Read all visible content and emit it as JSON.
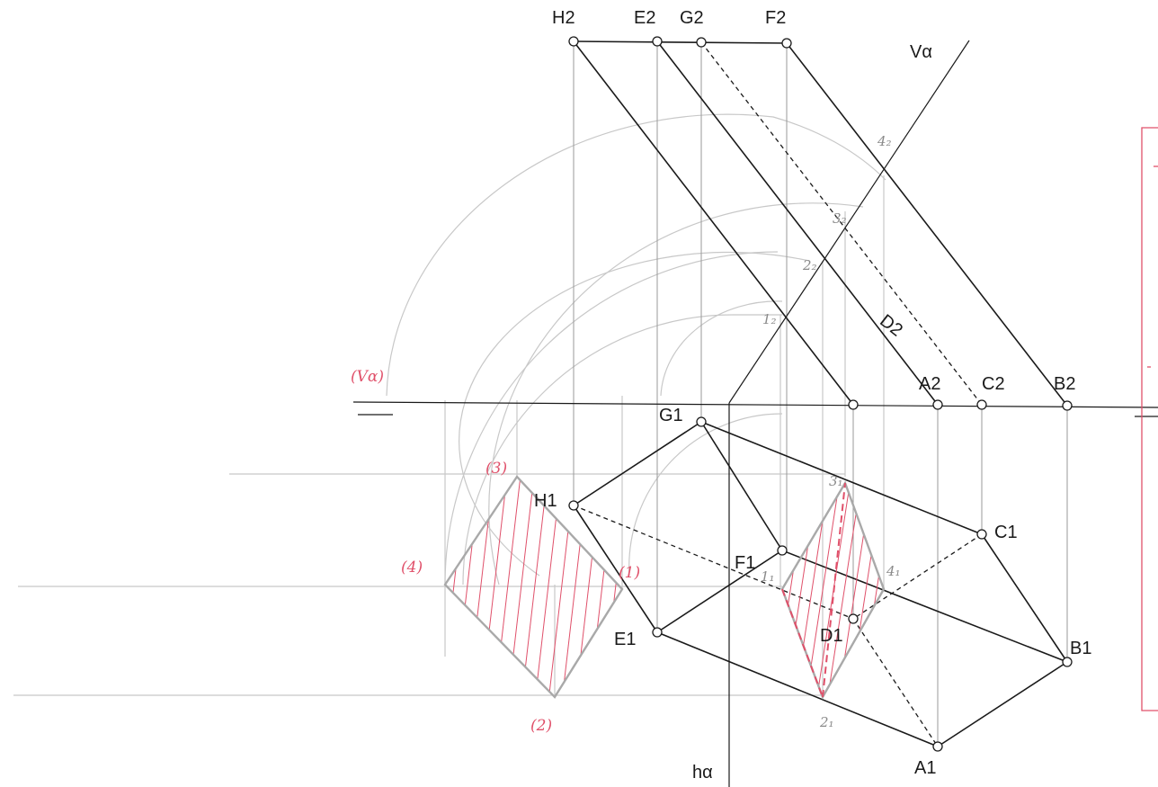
{
  "labels": {
    "H2": "H2",
    "E2": "E2",
    "G2": "G2",
    "F2": "F2",
    "V_alpha": "Vα",
    "h_alpha": "hα",
    "D2": "D2",
    "A2": "A2",
    "C2": "C2",
    "B2": "B2",
    "G1": "G1",
    "H1": "H1",
    "F1": "F1",
    "E1": "E1",
    "D1": "D1",
    "C1": "C1",
    "B1": "B1",
    "A1": "A1"
  },
  "pencil_labels": {
    "p1_2": "1₂",
    "p2_2": "2₂",
    "p3_2": "3₂",
    "p4_2": "4₂",
    "p1_1": "1₁",
    "p2_1": "2₁",
    "p3_1": "3₁",
    "p4_1": "4₁"
  },
  "red_labels": {
    "v_alpha_paren": "(Vα)",
    "r1": "(1)",
    "r2": "(2)",
    "r3": "(3)",
    "r4": "(4)"
  },
  "colors": {
    "ink": "#1a1a1a",
    "pencil": "#c8c8c8",
    "red_pen": "#e0506a",
    "background": "#ffffff"
  }
}
